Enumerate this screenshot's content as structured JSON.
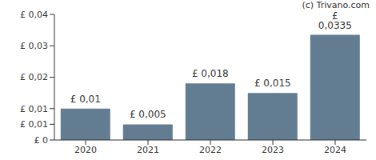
{
  "chart_data": {
    "type": "bar",
    "annotation": "(c) Trivano.com",
    "categories": [
      "2020",
      "2021",
      "2022",
      "2023",
      "2024"
    ],
    "values": [
      0.01,
      0.005,
      0.018,
      0.015,
      0.0335
    ],
    "value_labels": [
      "£ 0,01",
      "£ 0,005",
      "£ 0,018",
      "£ 0,015",
      "£ 0,0335"
    ],
    "data_labels": true,
    "color": "#627d91",
    "ylim": [
      0,
      0.04
    ],
    "yticks": [
      {
        "value": 0,
        "label": "£ 0"
      },
      {
        "value": 0.005,
        "label": "£ 0,01"
      },
      {
        "value": 0.01,
        "label": "£ 0,01"
      },
      {
        "value": 0.02,
        "label": "£ 0,02"
      },
      {
        "value": 0.03,
        "label": "£ 0,03"
      },
      {
        "value": 0.04,
        "label": "£ 0,04"
      }
    ],
    "grid": false
  }
}
